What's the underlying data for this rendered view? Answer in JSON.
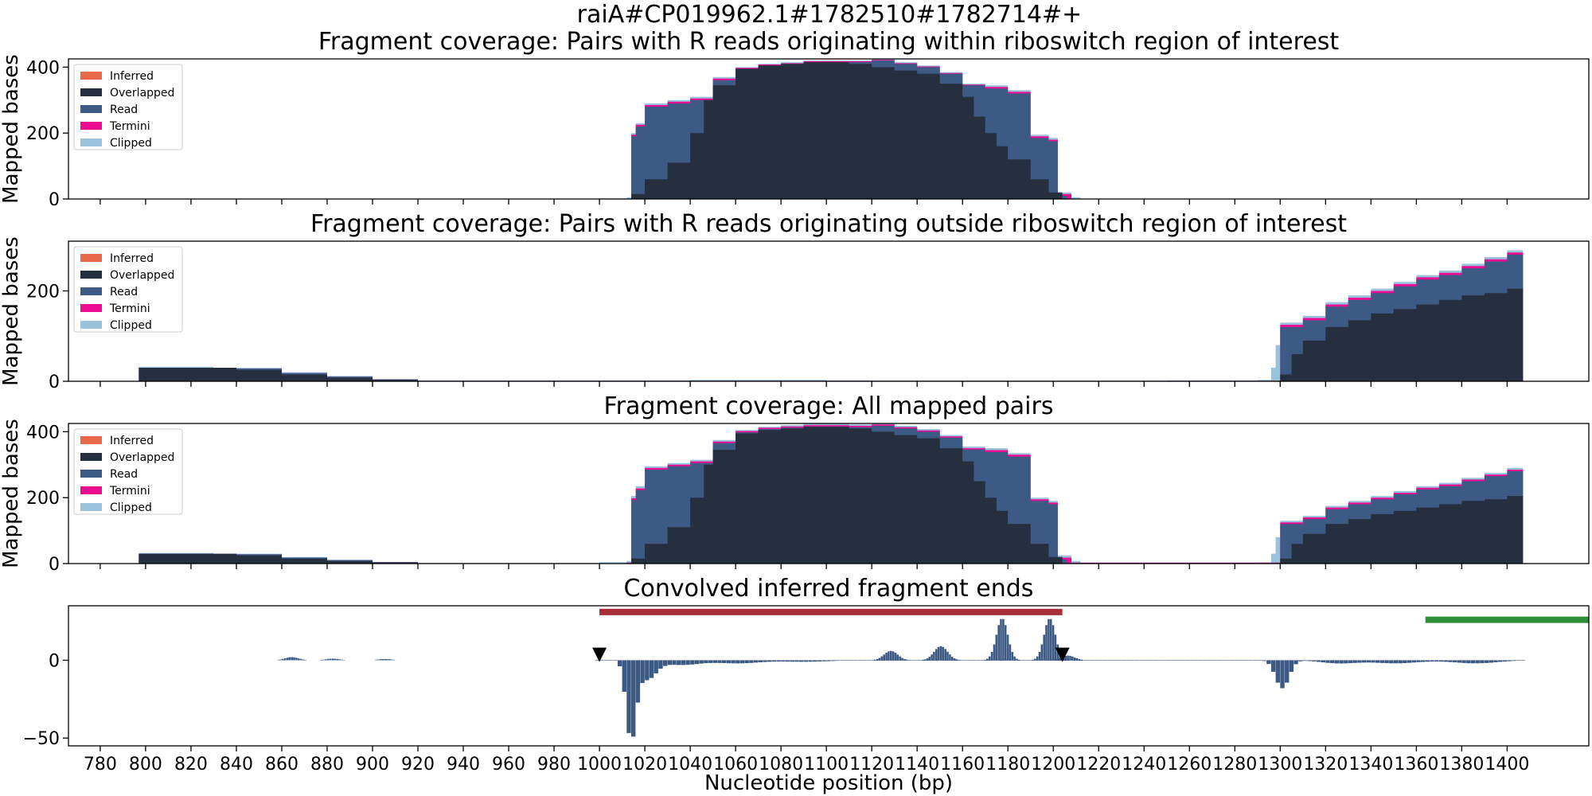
{
  "suptitle": "raiA#CP019962.1#1782510#1782714#+",
  "colors": {
    "Inferred": "#e8694a",
    "Overlapped": "#262f40",
    "Read": "#3d5a84",
    "Termini": "#ec0c94",
    "Clipped": "#9ac2dc",
    "conv": "#3d5a84",
    "region_red": "#a82f36",
    "region_green": "#2e8f38",
    "marker": "#000000"
  },
  "chart_data": [
    {
      "type": "area",
      "title": "Fragment coverage: Pairs with R reads originating within riboswitch region of interest",
      "ylabel": "Mapped bases",
      "xlim": [
        766,
        1436
      ],
      "ylim": [
        0,
        425
      ],
      "yticks": [
        "0",
        "200",
        "400"
      ],
      "ytick_values": [
        0,
        200,
        400
      ],
      "legend": [
        "Inferred",
        "Overlapped",
        "Read",
        "Termini",
        "Clipped"
      ],
      "legend_position": "upper-left",
      "series": [
        {
          "name": "Clipped",
          "x": [
            980,
            1000,
            1012,
            1014,
            1016,
            1020,
            1030,
            1040,
            1050,
            1060,
            1070,
            1080,
            1090,
            1100,
            1110,
            1120,
            1130,
            1140,
            1150,
            1160,
            1170,
            1180,
            1190,
            1198,
            1202,
            1208,
            1212
          ],
          "values": [
            0,
            2,
            5,
            200,
            230,
            290,
            300,
            310,
            370,
            400,
            410,
            415,
            420,
            420,
            420,
            425,
            415,
            405,
            385,
            350,
            345,
            330,
            195,
            185,
            20,
            5,
            0
          ]
        },
        {
          "name": "Termini",
          "x": [
            1012,
            1014,
            1016,
            1020,
            1030,
            1040,
            1050,
            1060,
            1070,
            1080,
            1090,
            1100,
            1110,
            1120,
            1130,
            1140,
            1150,
            1160,
            1170,
            1180,
            1190,
            1198,
            1202,
            1208
          ],
          "values": [
            0,
            195,
            225,
            285,
            295,
            305,
            365,
            398,
            408,
            412,
            418,
            418,
            418,
            422,
            412,
            402,
            382,
            347,
            340,
            325,
            190,
            180,
            15,
            0
          ]
        },
        {
          "name": "Read",
          "x": [
            1012,
            1014,
            1016,
            1020,
            1030,
            1040,
            1050,
            1060,
            1070,
            1080,
            1090,
            1100,
            1110,
            1120,
            1130,
            1140,
            1150,
            1160,
            1170,
            1180,
            1190,
            1198,
            1202,
            1206
          ],
          "values": [
            0,
            190,
            220,
            280,
            290,
            300,
            360,
            395,
            405,
            410,
            415,
            415,
            415,
            420,
            410,
            400,
            380,
            345,
            335,
            320,
            185,
            175,
            10,
            0
          ]
        },
        {
          "name": "Overlapped",
          "x": [
            1012,
            1014,
            1020,
            1030,
            1040,
            1046,
            1050,
            1060,
            1070,
            1080,
            1090,
            1100,
            1110,
            1120,
            1130,
            1140,
            1150,
            1160,
            1165,
            1170,
            1175,
            1180,
            1190,
            1198,
            1204
          ],
          "values": [
            0,
            15,
            60,
            110,
            200,
            300,
            345,
            395,
            405,
            410,
            415,
            415,
            410,
            400,
            390,
            380,
            350,
            310,
            250,
            200,
            160,
            120,
            60,
            20,
            0
          ]
        }
      ]
    },
    {
      "type": "area",
      "title": "Fragment coverage: Pairs with R reads originating outside riboswitch region of interest",
      "ylabel": "Mapped bases",
      "xlim": [
        766,
        1436
      ],
      "ylim": [
        0,
        310
      ],
      "yticks": [
        "0",
        "200"
      ],
      "ytick_values": [
        0,
        200
      ],
      "legend": [
        "Inferred",
        "Overlapped",
        "Read",
        "Termini",
        "Clipped"
      ],
      "legend_position": "upper-left",
      "series": [
        {
          "name": "Clipped",
          "x": [
            797,
            830,
            860,
            880,
            900,
            920,
            1000,
            1040,
            1080,
            1100,
            1120,
            1200,
            1250,
            1290,
            1296,
            1298,
            1300,
            1310,
            1320,
            1330,
            1340,
            1350,
            1360,
            1370,
            1380,
            1390,
            1400,
            1407
          ],
          "values": [
            32,
            30,
            20,
            12,
            5,
            2,
            2,
            3,
            3,
            2,
            1,
            0,
            2,
            3,
            30,
            80,
            130,
            145,
            175,
            190,
            205,
            220,
            235,
            245,
            260,
            275,
            290,
            310
          ]
        },
        {
          "name": "Termini",
          "x": [
            797,
            830,
            860,
            880,
            900,
            920,
            1300,
            1310,
            1320,
            1330,
            1340,
            1350,
            1360,
            1370,
            1380,
            1390,
            1400,
            1407
          ],
          "values": [
            30,
            28,
            18,
            10,
            4,
            1,
            125,
            140,
            170,
            185,
            200,
            215,
            230,
            240,
            255,
            270,
            285,
            305
          ]
        },
        {
          "name": "Read",
          "x": [
            797,
            830,
            860,
            880,
            900,
            920,
            1300,
            1310,
            1320,
            1330,
            1340,
            1350,
            1360,
            1370,
            1380,
            1390,
            1400,
            1407
          ],
          "values": [
            30,
            28,
            18,
            10,
            4,
            1,
            120,
            135,
            165,
            180,
            195,
            210,
            225,
            235,
            250,
            265,
            280,
            300
          ]
        },
        {
          "name": "Overlapped",
          "x": [
            797,
            820,
            840,
            860,
            880,
            900,
            920,
            1300,
            1305,
            1310,
            1320,
            1330,
            1340,
            1350,
            1360,
            1370,
            1380,
            1390,
            1400,
            1407
          ],
          "values": [
            30,
            30,
            25,
            15,
            8,
            3,
            0,
            15,
            60,
            90,
            120,
            135,
            150,
            160,
            170,
            180,
            190,
            195,
            205,
            220
          ]
        }
      ]
    },
    {
      "type": "area",
      "title": "Fragment coverage: All mapped pairs",
      "ylabel": "Mapped bases",
      "xlim": [
        766,
        1436
      ],
      "ylim": [
        0,
        425
      ],
      "yticks": [
        "0",
        "200",
        "400"
      ],
      "ytick_values": [
        0,
        200,
        400
      ],
      "legend": [
        "Inferred",
        "Overlapped",
        "Read",
        "Termini",
        "Clipped"
      ],
      "legend_position": "upper-left",
      "series": [
        {
          "name": "Clipped",
          "x": [
            797,
            830,
            860,
            880,
            900,
            920,
            980,
            1000,
            1012,
            1014,
            1016,
            1020,
            1030,
            1040,
            1050,
            1060,
            1070,
            1080,
            1090,
            1100,
            1110,
            1120,
            1130,
            1140,
            1150,
            1160,
            1170,
            1180,
            1190,
            1198,
            1202,
            1208,
            1212,
            1250,
            1290,
            1296,
            1298,
            1300,
            1310,
            1320,
            1330,
            1340,
            1350,
            1360,
            1370,
            1380,
            1390,
            1400,
            1407
          ],
          "values": [
            32,
            30,
            20,
            12,
            5,
            2,
            2,
            4,
            8,
            205,
            235,
            295,
            305,
            315,
            375,
            405,
            415,
            420,
            425,
            425,
            422,
            425,
            418,
            408,
            390,
            355,
            350,
            335,
            200,
            190,
            25,
            8,
            2,
            2,
            3,
            30,
            80,
            130,
            145,
            175,
            190,
            205,
            220,
            235,
            245,
            260,
            275,
            290,
            310
          ]
        },
        {
          "name": "Termini",
          "x": [
            797,
            830,
            860,
            880,
            900,
            920,
            1012,
            1014,
            1016,
            1020,
            1030,
            1040,
            1050,
            1060,
            1070,
            1080,
            1090,
            1100,
            1110,
            1120,
            1130,
            1140,
            1150,
            1160,
            1170,
            1180,
            1190,
            1198,
            1202,
            1208,
            1300,
            1310,
            1320,
            1330,
            1340,
            1350,
            1360,
            1370,
            1380,
            1390,
            1400,
            1407
          ],
          "values": [
            30,
            28,
            18,
            10,
            4,
            1,
            3,
            198,
            228,
            290,
            300,
            310,
            370,
            402,
            412,
            416,
            420,
            420,
            418,
            422,
            414,
            404,
            386,
            350,
            344,
            330,
            195,
            185,
            18,
            3,
            125,
            140,
            170,
            185,
            200,
            215,
            230,
            240,
            255,
            270,
            285,
            305
          ]
        },
        {
          "name": "Read",
          "x": [
            797,
            830,
            860,
            880,
            900,
            920,
            1012,
            1014,
            1016,
            1020,
            1030,
            1040,
            1050,
            1060,
            1070,
            1080,
            1090,
            1100,
            1110,
            1120,
            1130,
            1140,
            1150,
            1160,
            1170,
            1180,
            1190,
            1198,
            1202,
            1206,
            1300,
            1310,
            1320,
            1330,
            1340,
            1350,
            1360,
            1370,
            1380,
            1390,
            1400,
            1407
          ],
          "values": [
            30,
            28,
            18,
            10,
            4,
            1,
            2,
            193,
            223,
            285,
            295,
            305,
            365,
            398,
            408,
            412,
            416,
            416,
            414,
            418,
            410,
            400,
            382,
            346,
            338,
            324,
            190,
            180,
            12,
            2,
            120,
            135,
            165,
            180,
            195,
            210,
            225,
            235,
            250,
            265,
            280,
            300
          ]
        },
        {
          "name": "Overlapped",
          "x": [
            797,
            820,
            840,
            860,
            880,
            900,
            920,
            1012,
            1014,
            1020,
            1030,
            1040,
            1046,
            1050,
            1060,
            1070,
            1080,
            1090,
            1100,
            1110,
            1120,
            1130,
            1140,
            1150,
            1160,
            1165,
            1170,
            1175,
            1180,
            1190,
            1198,
            1204,
            1300,
            1305,
            1310,
            1320,
            1330,
            1340,
            1350,
            1360,
            1370,
            1380,
            1390,
            1400,
            1407
          ],
          "values": [
            30,
            30,
            25,
            15,
            8,
            3,
            0,
            0,
            15,
            60,
            110,
            200,
            300,
            345,
            395,
            405,
            410,
            415,
            415,
            410,
            400,
            390,
            380,
            350,
            310,
            250,
            200,
            160,
            120,
            60,
            20,
            0,
            15,
            60,
            90,
            120,
            135,
            150,
            160,
            170,
            180,
            190,
            195,
            205,
            220
          ]
        }
      ]
    },
    {
      "type": "bar",
      "title": "Convolved inferred fragment ends",
      "xlabel": "Nucleotide position (bp)",
      "xlim": [
        766,
        1436
      ],
      "ylim": [
        -55,
        35
      ],
      "yticks": [
        "0",
        "−50"
      ],
      "ytick_values": [
        0,
        -50
      ],
      "xticks": [
        "780",
        "800",
        "820",
        "840",
        "860",
        "880",
        "900",
        "920",
        "940",
        "960",
        "980",
        "1000",
        "1020",
        "1040",
        "1060",
        "1080",
        "1100",
        "1120",
        "1140",
        "1160",
        "1180",
        "1200",
        "1220",
        "1240",
        "1260",
        "1280",
        "1300",
        "1320",
        "1340",
        "1360",
        "1380",
        "1400"
      ],
      "xtick_values": [
        780,
        800,
        820,
        840,
        860,
        880,
        900,
        920,
        940,
        960,
        980,
        1000,
        1020,
        1040,
        1060,
        1080,
        1100,
        1120,
        1140,
        1160,
        1180,
        1200,
        1220,
        1240,
        1260,
        1280,
        1300,
        1320,
        1340,
        1360,
        1380,
        1400
      ],
      "positive_peaks": [
        {
          "center": 864,
          "height": 2,
          "width": 3
        },
        {
          "center": 882,
          "height": 1,
          "width": 3
        },
        {
          "center": 905,
          "height": 0.8,
          "width": 3
        },
        {
          "center": 1128,
          "height": 6,
          "width": 3
        },
        {
          "center": 1150,
          "height": 9,
          "width": 3
        },
        {
          "center": 1177,
          "height": 27,
          "width": 2.5
        },
        {
          "center": 1198,
          "height": 27,
          "width": 2.5
        },
        {
          "center": 1206,
          "height": 3,
          "width": 3
        }
      ],
      "negative_peaks": [
        {
          "center": 1013,
          "height": 50,
          "width": 2.2
        },
        {
          "center": 1020,
          "height": 12,
          "width": 4
        },
        {
          "center": 1035,
          "height": 3,
          "width": 8
        },
        {
          "center": 1060,
          "height": 2,
          "width": 10
        },
        {
          "center": 1090,
          "height": 1,
          "width": 10
        },
        {
          "center": 1300,
          "height": 18,
          "width": 3
        },
        {
          "center": 1325,
          "height": 2,
          "width": 8
        },
        {
          "center": 1350,
          "height": 2,
          "width": 10
        },
        {
          "center": 1385,
          "height": 2,
          "width": 10
        }
      ],
      "signal_range": [
        998,
        1407
      ],
      "regions": [
        {
          "color": "region_red",
          "x0": 1000,
          "x1": 1204,
          "y": 31
        },
        {
          "color": "region_green",
          "x0": 1364,
          "x1": 1436,
          "y": 26
        }
      ],
      "markers": [
        {
          "x": 1000,
          "y": 3
        },
        {
          "x": 1204,
          "y": 3
        }
      ]
    }
  ]
}
